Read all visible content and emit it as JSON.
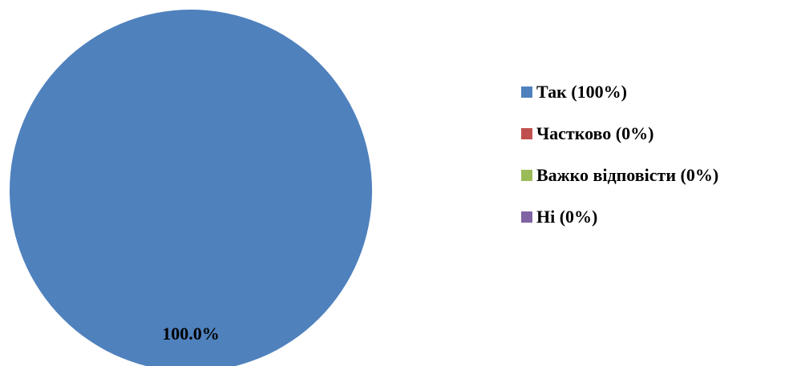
{
  "chart_data": {
    "type": "pie",
    "title": "",
    "categories": [
      "Так (100%)",
      "Частково (0%)",
      "Важко відповісти (0%)",
      "Ні (0%)"
    ],
    "values": [
      100,
      0,
      0,
      0
    ],
    "colors": [
      "#4f81bd",
      "#c0504d",
      "#9bbb59",
      "#8064a2"
    ],
    "data_labels": [
      "100.0%"
    ],
    "legend_position": "right"
  }
}
